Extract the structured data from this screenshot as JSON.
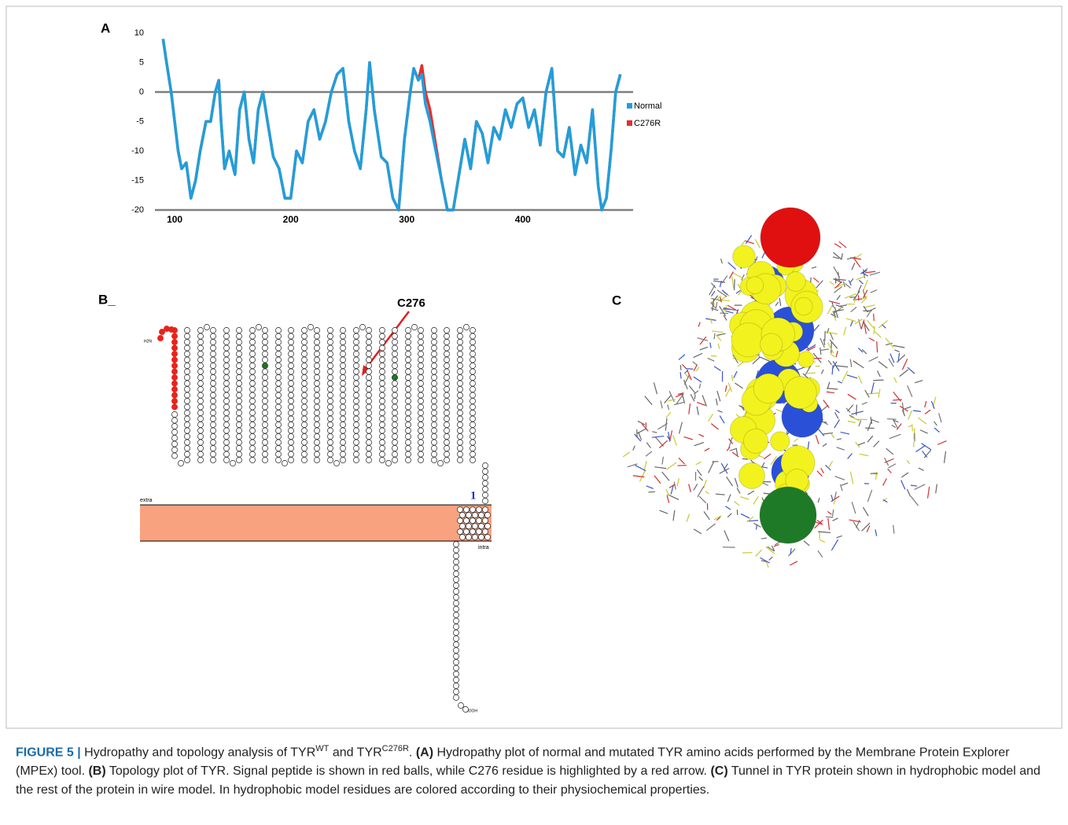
{
  "chart_data": {
    "type": "line",
    "panel_label": "A",
    "xlim": [
      83,
      495
    ],
    "ylim": [
      -20,
      10
    ],
    "xticks": [
      100,
      200,
      300,
      400
    ],
    "yticks": [
      10,
      5,
      0,
      -5,
      -10,
      -15,
      -20
    ],
    "legend": "right",
    "x": [
      90,
      93,
      97,
      100,
      103,
      106,
      110,
      114,
      118,
      122,
      127,
      131,
      135,
      138,
      140,
      143,
      147,
      152,
      156,
      160,
      164,
      168,
      172,
      176,
      180,
      185,
      190,
      195,
      200,
      205,
      210,
      215,
      220,
      225,
      230,
      235,
      240,
      245,
      250,
      255,
      260,
      265,
      268,
      272,
      278,
      283,
      288,
      293,
      298,
      303,
      306,
      310,
      313,
      316,
      320,
      325,
      330,
      335,
      340,
      345,
      350,
      355,
      360,
      365,
      370,
      375,
      380,
      385,
      390,
      395,
      400,
      405,
      410,
      415,
      420,
      425,
      430,
      435,
      440,
      445,
      450,
      455,
      460,
      465,
      468,
      472,
      476,
      480,
      484
    ],
    "series": [
      {
        "name": "C276R",
        "color": "#e0312f",
        "values": [
          9,
          5,
          0,
          -5,
          -10,
          -13,
          -12,
          -18,
          -15,
          -10,
          -5,
          -5,
          0,
          2,
          -5,
          -13,
          -10,
          -14,
          -3,
          0,
          -8,
          -12,
          -3,
          0,
          -5,
          -11,
          -13,
          -18,
          -18,
          -10,
          -12,
          -5,
          -3,
          -8,
          -5,
          0,
          3,
          4,
          -5,
          -10,
          -13,
          -3,
          5,
          -3,
          -11,
          -12,
          -18,
          -20,
          -8,
          0,
          4,
          2,
          4.5,
          0,
          -3,
          -9,
          -15,
          -20,
          -20,
          -14,
          -8,
          -13,
          -5,
          -7,
          -12,
          -6,
          -8,
          -3,
          -6,
          -2,
          -1,
          -6,
          -3,
          -9,
          0,
          4,
          -10,
          -11,
          -6,
          -14,
          -9,
          -12,
          -3,
          -16,
          -20,
          -18,
          -10,
          0,
          3
        ]
      },
      {
        "name": "Normal",
        "color": "#1f9fdc",
        "values": [
          9,
          5,
          0,
          -5,
          -10,
          -13,
          -12,
          -18,
          -15,
          -10,
          -5,
          -5,
          0,
          2,
          -5,
          -13,
          -10,
          -14,
          -3,
          0,
          -8,
          -12,
          -3,
          0,
          -5,
          -11,
          -13,
          -18,
          -18,
          -10,
          -12,
          -5,
          -3,
          -8,
          -5,
          0,
          3,
          4,
          -5,
          -10,
          -13,
          -3,
          5,
          -3,
          -11,
          -12,
          -18,
          -20,
          -8,
          0,
          4,
          2,
          3,
          -2,
          -5,
          -10,
          -15,
          -20,
          -20,
          -14,
          -8,
          -13,
          -5,
          -7,
          -12,
          -6,
          -8,
          -3,
          -6,
          -2,
          -1,
          -6,
          -3,
          -9,
          0,
          4,
          -10,
          -11,
          -6,
          -14,
          -9,
          -12,
          -3,
          -16,
          -20,
          -18,
          -10,
          0,
          3
        ]
      }
    ]
  },
  "panel_b": {
    "label": "B_",
    "arrow_label": "C276",
    "extra": "extra",
    "intra": "intra",
    "site": "1",
    "n_term": "H2N",
    "c_term": "COOH"
  },
  "panel_c": {
    "label": "C"
  },
  "caption": {
    "parts": [
      {
        "text": "FIGURE 5 |",
        "style": "bold"
      },
      {
        "text": " Hydropathy and topology analysis of TYR",
        "style": "normal"
      },
      {
        "text": "WT",
        "style": "sup"
      },
      {
        "text": " and TYR",
        "style": "normal"
      },
      {
        "text": "C276R",
        "style": "sup"
      },
      {
        "text": ". ",
        "style": "normal"
      },
      {
        "text": "(A)",
        "style": "bold"
      },
      {
        "text": " Hydropathy plot of normal and mutated TYR amino acids performed by the Membrane Protein Explorer (MPEx) tool. ",
        "style": "normal"
      },
      {
        "text": "(B)",
        "style": "bold"
      },
      {
        "text": " Topology plot of TYR. Signal peptide is shown in red balls, while C276 residue is highlighted by a red arrow. ",
        "style": "normal"
      },
      {
        "text": "(C)",
        "style": "bold"
      },
      {
        "text": " Tunnel in TYR protein shown in hydrophobic model and the rest of the protein in wire model. In hydrophobic model residues are colored according to their physiochemical properties.",
        "style": "normal"
      }
    ]
  }
}
